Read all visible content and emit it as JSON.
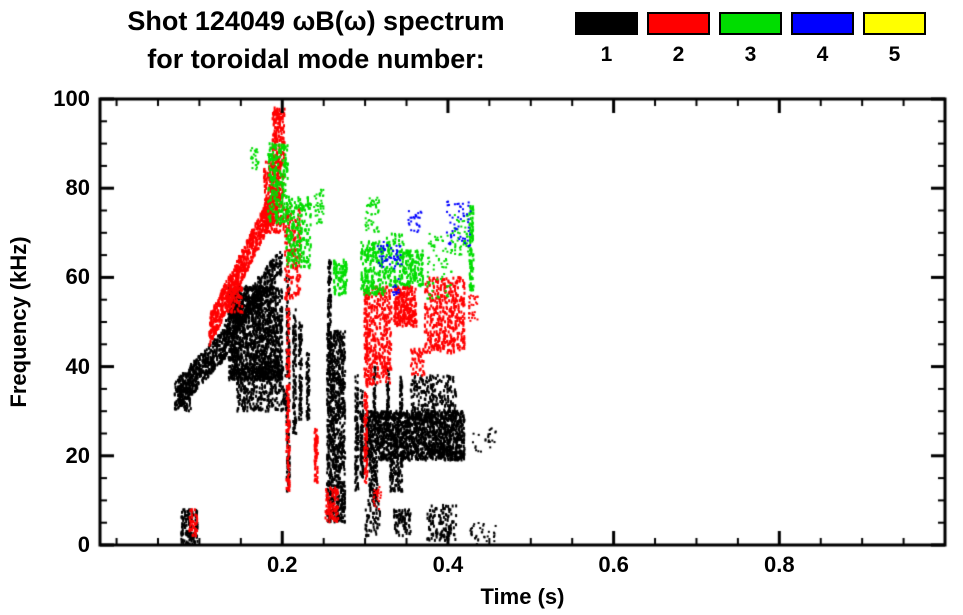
{
  "header": {
    "title_line1": "Shot 124049 ωB(ω) spectrum",
    "title_line2": "for toroidal mode number:"
  },
  "legend": {
    "position": "top-right",
    "items": [
      {
        "label": "1",
        "color": "#000000"
      },
      {
        "label": "2",
        "color": "#ff0000"
      },
      {
        "label": "3",
        "color": "#00dd00"
      },
      {
        "label": "4",
        "color": "#0000ff"
      },
      {
        "label": "5",
        "color": "#ffff00"
      }
    ]
  },
  "axes": {
    "xlabel": "Time (s)",
    "ylabel": "Frequency (kHz)",
    "xtick_labels": [
      "0.2",
      "0.4",
      "0.6",
      "0.8"
    ],
    "ytick_labels": [
      "0",
      "20",
      "40",
      "60",
      "80",
      "100"
    ]
  },
  "chart_data": {
    "type": "scatter",
    "title": "Shot 124049 ωB(ω) spectrum for toroidal mode number",
    "xlabel": "Time (s)",
    "ylabel": "Frequency (kHz)",
    "xlim": [
      -0.02,
      1.0
    ],
    "ylim": [
      0,
      100
    ],
    "xticks": [
      0.2,
      0.4,
      0.6,
      0.8
    ],
    "yticks": [
      0,
      20,
      40,
      60,
      80,
      100
    ],
    "x_minor_step": 0.05,
    "y_minor_step": 5,
    "grid": false,
    "legend_position": "top-right",
    "series": [
      {
        "name": "n=1",
        "color": "#000000",
        "clusters": [
          {
            "type": "ramp",
            "t": [
              0.075,
              0.135
            ],
            "f": [
              34,
              46
            ],
            "w": 3.5,
            "n": 500
          },
          {
            "type": "blob",
            "t": [
              0.07,
              0.09
            ],
            "f": [
              30,
              37
            ],
            "n": 120
          },
          {
            "type": "ramp",
            "t": [
              0.13,
              0.2
            ],
            "f": [
              47,
              64
            ],
            "w": 3,
            "n": 420
          },
          {
            "type": "blob",
            "t": [
              0.135,
              0.2
            ],
            "f": [
              37,
              58
            ],
            "n": 1500
          },
          {
            "type": "blob",
            "t": [
              0.145,
              0.205
            ],
            "f": [
              30,
              40
            ],
            "n": 350
          },
          {
            "type": "blob",
            "t": [
              0.205,
              0.209
            ],
            "f": [
              12,
              60
            ],
            "n": 150
          },
          {
            "type": "blob",
            "t": [
              0.213,
              0.217
            ],
            "f": [
              25,
              55
            ],
            "n": 110
          },
          {
            "type": "blob",
            "t": [
              0.22,
              0.224
            ],
            "f": [
              28,
              50
            ],
            "n": 85
          },
          {
            "type": "blob",
            "t": [
              0.229,
              0.233
            ],
            "f": [
              28,
              43
            ],
            "n": 60
          },
          {
            "type": "blob",
            "t": [
              0.255,
              0.259
            ],
            "f": [
              44,
              64
            ],
            "n": 100
          },
          {
            "type": "blob",
            "t": [
              0.254,
              0.276
            ],
            "f": [
              5,
              48
            ],
            "n": 900
          },
          {
            "type": "blob",
            "t": [
              0.288,
              0.292
            ],
            "f": [
              12,
              38
            ],
            "n": 110
          },
          {
            "type": "blob",
            "t": [
              0.294,
              0.298
            ],
            "f": [
              15,
              35
            ],
            "n": 90
          },
          {
            "type": "blob",
            "t": [
              0.3,
              0.42
            ],
            "f": [
              19,
              30
            ],
            "n": 1700
          },
          {
            "type": "blob",
            "t": [
              0.305,
              0.315
            ],
            "f": [
              10,
              19
            ],
            "n": 90
          },
          {
            "type": "blob",
            "t": [
              0.33,
              0.345
            ],
            "f": [
              12,
              19
            ],
            "n": 90
          },
          {
            "type": "blob",
            "t": [
              0.31,
              0.313
            ],
            "f": [
              28,
              40
            ],
            "n": 45
          },
          {
            "type": "blob",
            "t": [
              0.326,
              0.329
            ],
            "f": [
              28,
              40
            ],
            "n": 45
          },
          {
            "type": "blob",
            "t": [
              0.342,
              0.345
            ],
            "f": [
              28,
              38
            ],
            "n": 40
          },
          {
            "type": "blob",
            "t": [
              0.355,
              0.41
            ],
            "f": [
              28,
              38
            ],
            "n": 220
          },
          {
            "type": "blob",
            "t": [
              0.078,
              0.098
            ],
            "f": [
              0,
              8
            ],
            "n": 130
          },
          {
            "type": "blob",
            "t": [
              0.3,
              0.318
            ],
            "f": [
              2,
              10
            ],
            "n": 60
          },
          {
            "type": "blob",
            "t": [
              0.335,
              0.355
            ],
            "f": [
              2,
              8
            ],
            "n": 80
          },
          {
            "type": "blob",
            "t": [
              0.375,
              0.41
            ],
            "f": [
              1,
              9
            ],
            "n": 120
          },
          {
            "type": "blob",
            "t": [
              0.425,
              0.458
            ],
            "f": [
              0,
              5
            ],
            "n": 35,
            "s": [
              2,
              2
            ]
          },
          {
            "type": "blob",
            "t": [
              0.43,
              0.46
            ],
            "f": [
              20,
              27
            ],
            "n": 25,
            "s": [
              2,
              2
            ]
          }
        ]
      },
      {
        "name": "n=2",
        "color": "#ff0000",
        "clusters": [
          {
            "type": "ramp",
            "t": [
              0.112,
              0.196
            ],
            "f": [
              48,
              79
            ],
            "w": 3.5,
            "n": 800
          },
          {
            "type": "blob",
            "t": [
              0.178,
              0.202
            ],
            "f": [
              70,
              86
            ],
            "n": 300
          },
          {
            "type": "blob",
            "t": [
              0.188,
              0.203
            ],
            "f": [
              84,
              98
            ],
            "n": 180
          },
          {
            "type": "blob",
            "t": [
              0.203,
              0.222
            ],
            "f": [
              55,
              76
            ],
            "n": 170
          },
          {
            "type": "blob",
            "t": [
              0.205,
              0.209
            ],
            "f": [
              12,
              54
            ],
            "n": 140
          },
          {
            "type": "blob",
            "t": [
              0.133,
              0.152
            ],
            "f": [
              52,
              59
            ],
            "n": 100
          },
          {
            "type": "blob",
            "t": [
              0.239,
              0.243
            ],
            "f": [
              14,
              26
            ],
            "n": 65
          },
          {
            "type": "blob",
            "t": [
              0.252,
              0.268
            ],
            "f": [
              5,
              13
            ],
            "n": 90
          },
          {
            "type": "blob",
            "t": [
              0.299,
              0.303
            ],
            "f": [
              14,
              58
            ],
            "n": 150
          },
          {
            "type": "blob",
            "t": [
              0.302,
              0.332
            ],
            "f": [
              36,
              58
            ],
            "n": 360
          },
          {
            "type": "blob",
            "t": [
              0.335,
              0.362
            ],
            "f": [
              49,
              58
            ],
            "n": 270
          },
          {
            "type": "blob",
            "t": [
              0.372,
              0.42
            ],
            "f": [
              43,
              60
            ],
            "n": 420
          },
          {
            "type": "blob",
            "t": [
              0.425,
              0.436
            ],
            "f": [
              50,
              56
            ],
            "n": 30,
            "s": [
              2,
              2
            ]
          },
          {
            "type": "blob",
            "t": [
              0.088,
              0.098
            ],
            "f": [
              2,
              8
            ],
            "n": 40
          },
          {
            "type": "blob",
            "t": [
              0.355,
              0.372
            ],
            "f": [
              38,
              44
            ],
            "n": 45
          },
          {
            "type": "blob",
            "t": [
              0.31,
              0.32
            ],
            "f": [
              8,
              13
            ],
            "n": 25,
            "s": [
              2,
              2
            ]
          }
        ]
      },
      {
        "name": "n=3",
        "color": "#00dd00",
        "clusters": [
          {
            "type": "blob",
            "t": [
              0.183,
              0.207
            ],
            "f": [
              72,
              90
            ],
            "n": 230
          },
          {
            "type": "blob",
            "t": [
              0.205,
              0.235
            ],
            "f": [
              62,
              78
            ],
            "n": 210
          },
          {
            "type": "blob",
            "t": [
              0.162,
              0.172
            ],
            "f": [
              84,
              89
            ],
            "n": 25,
            "s": [
              2,
              2
            ]
          },
          {
            "type": "blob",
            "t": [
              0.238,
              0.25
            ],
            "f": [
              72,
              80
            ],
            "n": 40,
            "s": [
              2,
              2
            ]
          },
          {
            "type": "blob",
            "t": [
              0.262,
              0.278
            ],
            "f": [
              56,
              64
            ],
            "n": 90
          },
          {
            "type": "blob",
            "t": [
              0.295,
              0.325
            ],
            "f": [
              56,
              68
            ],
            "n": 200
          },
          {
            "type": "blob",
            "t": [
              0.3,
              0.317
            ],
            "f": [
              70,
              78
            ],
            "n": 50,
            "s": [
              2,
              2
            ]
          },
          {
            "type": "blob",
            "t": [
              0.325,
              0.348
            ],
            "f": [
              58,
              70
            ],
            "n": 110
          },
          {
            "type": "blob",
            "t": [
              0.348,
              0.37
            ],
            "f": [
              58,
              66
            ],
            "n": 120
          },
          {
            "type": "blob",
            "t": [
              0.375,
              0.41
            ],
            "f": [
              55,
              70
            ],
            "n": 80,
            "s": [
              2,
              2
            ]
          },
          {
            "type": "blob",
            "t": [
              0.426,
              0.431
            ],
            "f": [
              57,
              76
            ],
            "n": 85
          },
          {
            "type": "blob",
            "t": [
              0.408,
              0.425
            ],
            "f": [
              65,
              74
            ],
            "n": 40,
            "s": [
              2,
              2
            ]
          }
        ]
      },
      {
        "name": "n=4",
        "color": "#0000ff",
        "clusters": [
          {
            "type": "blob",
            "t": [
              0.315,
              0.345
            ],
            "f": [
              62,
              68
            ],
            "n": 50,
            "s": [
              2,
              2
            ]
          },
          {
            "type": "blob",
            "t": [
              0.352,
              0.368
            ],
            "f": [
              70,
              75
            ],
            "n": 25,
            "s": [
              2,
              2
            ]
          },
          {
            "type": "blob",
            "t": [
              0.398,
              0.428
            ],
            "f": [
              67,
              77
            ],
            "n": 55,
            "s": [
              2,
              2
            ]
          },
          {
            "type": "blob",
            "t": [
              0.332,
              0.341
            ],
            "f": [
              56,
              60
            ],
            "n": 12,
            "s": [
              2,
              2
            ]
          }
        ]
      },
      {
        "name": "n=5",
        "color": "#ffff00",
        "clusters": []
      }
    ]
  }
}
